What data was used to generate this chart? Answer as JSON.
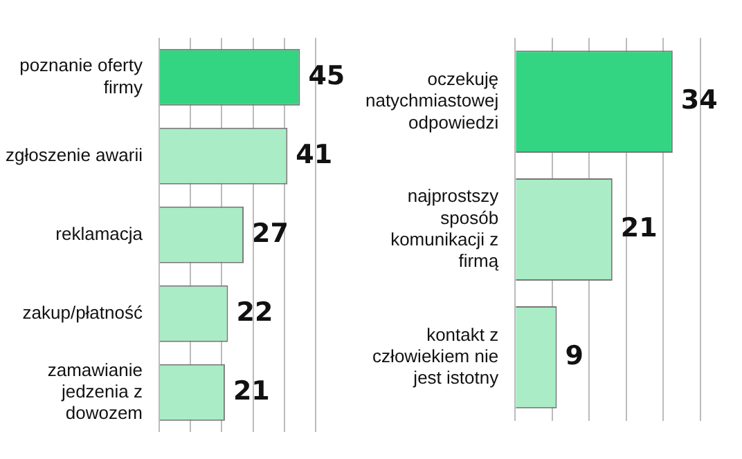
{
  "chart_data": [
    {
      "type": "bar",
      "orientation": "horizontal",
      "categories": [
        "poznanie oferty firmy",
        "zgłoszenie awarii",
        "reklamacja",
        "zakup/płatność",
        "zamawianie jedzenia z dowozem"
      ],
      "values": [
        45,
        41,
        27,
        22,
        21
      ],
      "colors": [
        "#33d482",
        "#a9ecc5",
        "#a9ecc5",
        "#a9ecc5",
        "#a9ecc5"
      ],
      "data_labels": true,
      "grid": "x",
      "tick_labels": "y"
    },
    {
      "type": "bar",
      "orientation": "horizontal",
      "categories": [
        "oczekuję natychmiastowej odpowiedzi",
        "najprostszy sposób komunikacji z firmą",
        "kontakt z człowiekiem nie jest istotny"
      ],
      "values": [
        34,
        21,
        9
      ],
      "colors": [
        "#33d482",
        "#a9ecc5",
        "#a9ecc5"
      ],
      "data_labels": true,
      "grid": "x",
      "tick_labels": "y"
    }
  ]
}
